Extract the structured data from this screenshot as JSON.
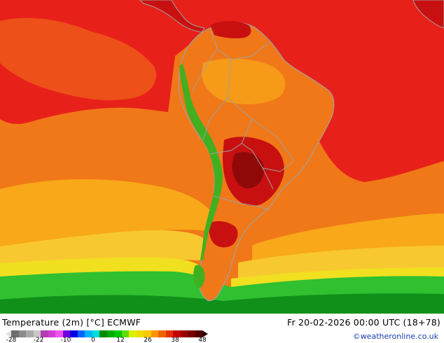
{
  "map": {
    "title": "Temperature (2m) [°C] ECMWF",
    "valid_time": "Fr 20-02-2026 00:00 UTC (18+78)",
    "credit": "©weatheronline.co.uk",
    "region": "South America",
    "colors": {
      "ocean_warm": "#f07818",
      "ocean_hot": "#e8201a",
      "ocean_mild": "#f8a818",
      "ocean_cool": "#f8c830",
      "ocean_yellow": "#f0e020",
      "cold_green": "#30c030",
      "cold_dark_green": "#109018",
      "land_hot": "#c81010",
      "land_very_hot": "#900808",
      "andes_green": "#40b020",
      "border": "#a0a0a0"
    }
  },
  "legend": {
    "ticks": [
      "-28",
      "-22",
      "-10",
      "0",
      "12",
      "26",
      "38",
      "48"
    ],
    "colors": [
      "#6e6e6e",
      "#8c8c8c",
      "#aaaaaa",
      "#c8c8c8",
      "#b43cb4",
      "#d23cd2",
      "#f050f0",
      "#6e00dc",
      "#0000e6",
      "#0064ff",
      "#00b4ff",
      "#00dcdc",
      "#008c00",
      "#00aa00",
      "#00c800",
      "#64dc00",
      "#dcf000",
      "#f0dc00",
      "#fac800",
      "#fa9600",
      "#f06400",
      "#e63200",
      "#c80000",
      "#9b0000",
      "#780000",
      "#550000"
    ],
    "left_arrow_color": "#e0e0e0",
    "right_arrow_color": "#2a0000"
  }
}
